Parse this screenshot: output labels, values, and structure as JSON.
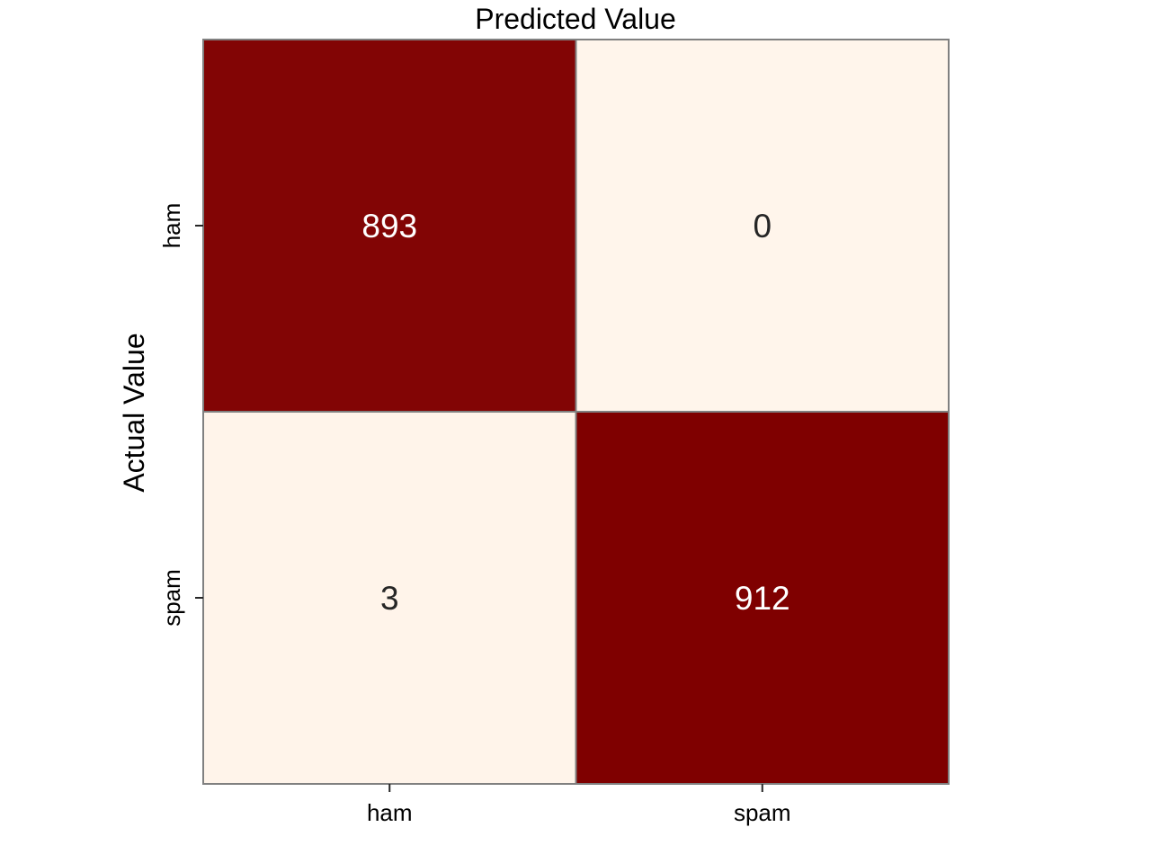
{
  "chart_data": {
    "type": "heatmap",
    "title": "Predicted Value",
    "xlabel": "",
    "ylabel": "Actual Value",
    "x_categories": [
      "ham",
      "spam"
    ],
    "y_categories": [
      "ham",
      "spam"
    ],
    "matrix": [
      [
        893,
        0
      ],
      [
        3,
        912
      ]
    ],
    "colors": {
      "low": "#fff5eb",
      "high": "#7f0000",
      "cell_border": "#808080",
      "text_dark": "#262626",
      "text_light": "#ffffff"
    }
  }
}
